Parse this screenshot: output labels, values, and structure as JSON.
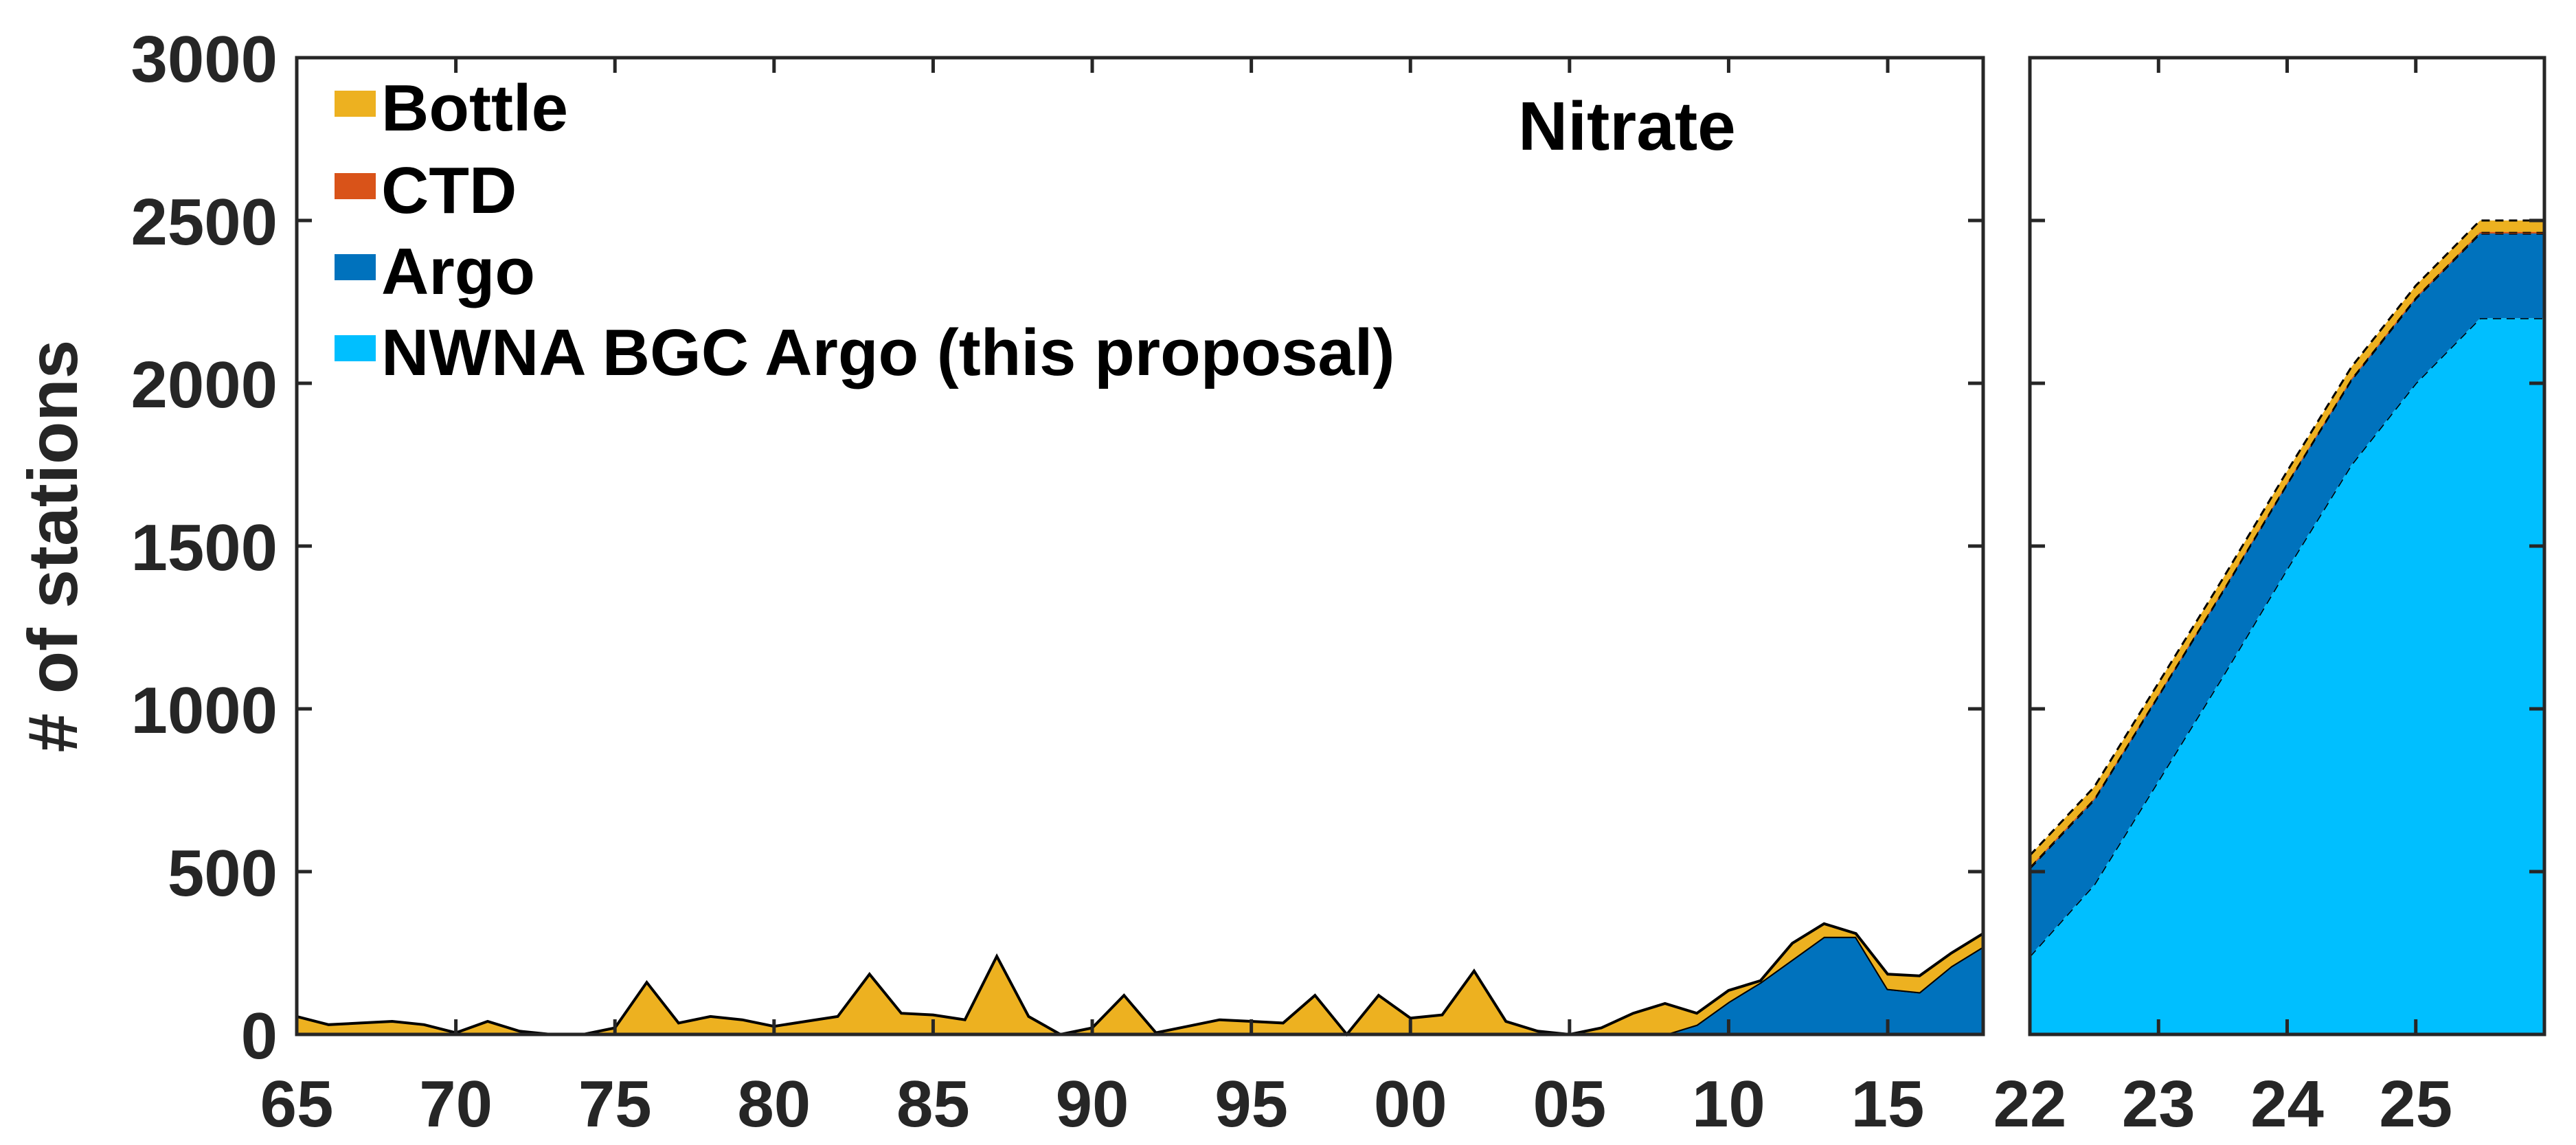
{
  "chart_data": {
    "type": "area",
    "stacked": true,
    "ylabel": "# of stations",
    "ylim": [
      0,
      3000
    ],
    "yticks": [
      0,
      500,
      1000,
      1500,
      2000,
      2500,
      3000
    ],
    "annotation": "Nitrate",
    "legend": {
      "location": "top-left",
      "entries": [
        {
          "key": "bottle",
          "label": "Bottle",
          "color": "#EDB120"
        },
        {
          "key": "ctd",
          "label": "CTD",
          "color": "#D95319"
        },
        {
          "key": "argo",
          "label": "Argo",
          "color": "#0072BD"
        },
        {
          "key": "bgc",
          "label": "NWNA BGC Argo (this proposal)",
          "color": "#00BFFF"
        }
      ]
    },
    "panels": [
      {
        "id": "historical",
        "xlim": [
          1965,
          2018
        ],
        "xticks": [
          1965,
          1970,
          1975,
          1980,
          1985,
          1990,
          1995,
          2000,
          2005,
          2010,
          2015
        ],
        "xtick_labels": [
          "65",
          "70",
          "75",
          "80",
          "85",
          "90",
          "95",
          "00",
          "05",
          "10",
          "15"
        ],
        "x": [
          1965,
          1966,
          1967,
          1968,
          1969,
          1970,
          1971,
          1972,
          1973,
          1974,
          1975,
          1976,
          1977,
          1978,
          1979,
          1980,
          1981,
          1982,
          1983,
          1984,
          1985,
          1986,
          1987,
          1988,
          1989,
          1990,
          1991,
          1992,
          1993,
          1994,
          1995,
          1996,
          1997,
          1998,
          1999,
          2000,
          2001,
          2002,
          2003,
          2004,
          2005,
          2006,
          2007,
          2008,
          2009,
          2010,
          2011,
          2012,
          2013,
          2014,
          2015,
          2016,
          2017,
          2018
        ],
        "series": [
          {
            "key": "argo",
            "values": [
              0,
              0,
              0,
              0,
              0,
              0,
              0,
              0,
              0,
              0,
              0,
              0,
              0,
              0,
              0,
              0,
              0,
              0,
              0,
              0,
              0,
              0,
              0,
              0,
              0,
              0,
              0,
              0,
              0,
              0,
              0,
              0,
              0,
              0,
              0,
              0,
              0,
              0,
              0,
              0,
              0,
              0,
              0,
              0,
              30,
              100,
              160,
              230,
              300,
              300,
              140,
              130,
              210,
              270
            ]
          },
          {
            "key": "ctd",
            "values": [
              0,
              0,
              0,
              0,
              0,
              0,
              0,
              0,
              0,
              0,
              0,
              0,
              0,
              0,
              0,
              0,
              0,
              0,
              0,
              0,
              0,
              0,
              0,
              0,
              0,
              0,
              0,
              0,
              0,
              0,
              0,
              0,
              0,
              0,
              0,
              0,
              0,
              0,
              0,
              0,
              0,
              0,
              0,
              0,
              0,
              0,
              0,
              0,
              0,
              0,
              0,
              0,
              0,
              0
            ]
          },
          {
            "key": "bottle",
            "values": [
              55,
              30,
              35,
              40,
              30,
              5,
              40,
              10,
              0,
              0,
              20,
              160,
              35,
              55,
              45,
              25,
              40,
              55,
              185,
              65,
              60,
              45,
              240,
              55,
              0,
              20,
              120,
              5,
              25,
              45,
              40,
              35,
              120,
              0,
              120,
              50,
              60,
              195,
              40,
              10,
              0,
              20,
              65,
              95,
              35,
              35,
              5,
              50,
              40,
              10,
              45,
              50,
              40,
              40
            ]
          }
        ]
      },
      {
        "id": "projection",
        "xlim": [
          2022,
          2026
        ],
        "xticks": [
          2022,
          2023,
          2024,
          2025
        ],
        "xtick_labels": [
          "22",
          "23",
          "24",
          "25"
        ],
        "x": [
          2022,
          2022.5,
          2023,
          2023.5,
          2024,
          2024.5,
          2025,
          2025.5,
          2026
        ],
        "series": [
          {
            "key": "bgc",
            "values": [
              240,
              460,
              780,
              1100,
              1430,
              1750,
              2000,
              2200,
              2200
            ]
          },
          {
            "key": "argo",
            "values": [
              270,
              260,
              260,
              260,
              260,
              260,
              260,
              260,
              260
            ]
          },
          {
            "key": "ctd",
            "values": [
              5,
              5,
              5,
              5,
              5,
              5,
              5,
              5,
              5
            ]
          },
          {
            "key": "bottle",
            "values": [
              35,
              35,
              35,
              35,
              35,
              35,
              35,
              35,
              35
            ]
          }
        ]
      }
    ]
  }
}
